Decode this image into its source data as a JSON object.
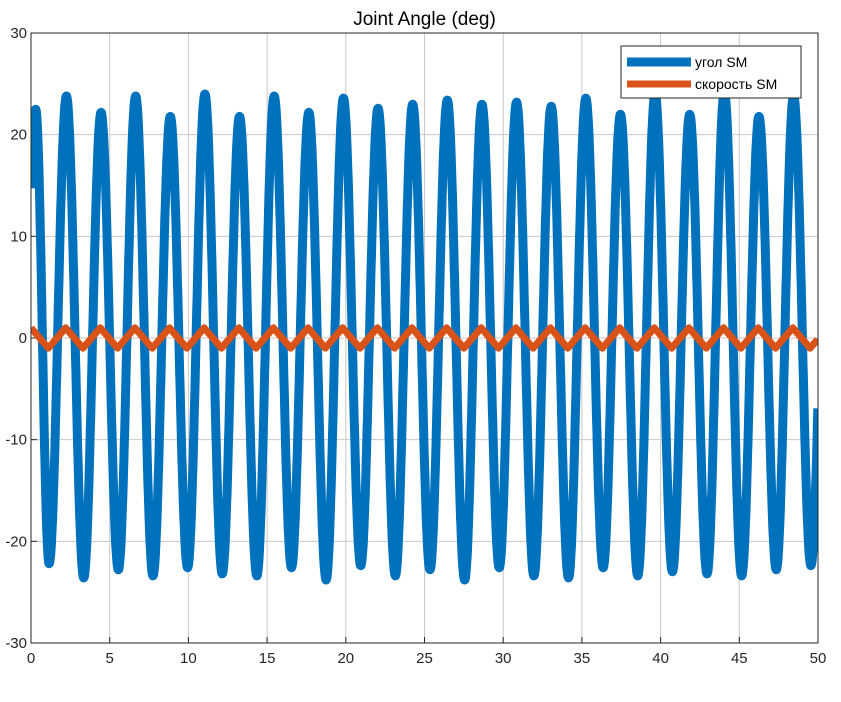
{
  "chart_data": {
    "type": "line",
    "title": "Joint Angle (deg)",
    "xlabel": "",
    "ylabel": "",
    "xlim": [
      0,
      50
    ],
    "ylim": [
      -30,
      30
    ],
    "x_ticks": [
      0,
      5,
      10,
      15,
      20,
      25,
      30,
      35,
      40,
      45,
      50
    ],
    "y_ticks": [
      30,
      20,
      10,
      0,
      -10,
      -20,
      -30
    ],
    "grid": true,
    "legend_position": "top-right",
    "series": [
      {
        "name": "угол SM",
        "color": "#0072BD",
        "peaks_x": [
          0.3,
          2.25,
          4.45,
          6.65,
          8.85,
          11.05,
          13.25,
          15.45,
          17.65,
          19.85,
          22.05,
          24.25,
          26.45,
          28.65,
          30.85,
          33.05,
          35.25,
          37.45,
          39.65,
          41.85,
          44.05,
          46.25,
          48.45
        ],
        "peaks_y": [
          22.5,
          23.8,
          22.2,
          23.8,
          21.8,
          24.0,
          21.8,
          23.8,
          22.2,
          23.6,
          22.6,
          23.0,
          23.4,
          23.0,
          23.2,
          22.8,
          23.6,
          22.0,
          24.0,
          22.0,
          24.2,
          21.8,
          23.8
        ],
        "troughs_x": [
          1.15,
          3.35,
          5.55,
          7.75,
          9.95,
          12.15,
          14.35,
          16.55,
          18.75,
          20.95,
          23.15,
          25.35,
          27.55,
          29.75,
          31.95,
          34.15,
          36.35,
          38.55,
          40.75,
          42.95,
          45.15,
          47.35,
          49.55
        ],
        "troughs_y": [
          -22.2,
          -23.6,
          -22.8,
          -23.4,
          -22.6,
          -23.2,
          -23.4,
          -22.6,
          -23.8,
          -22.4,
          -23.4,
          -22.8,
          -23.8,
          -22.6,
          -23.4,
          -23.6,
          -22.6,
          -23.4,
          -23.0,
          -23.2,
          -23.4,
          -22.8,
          -22.4
        ]
      },
      {
        "name": "скорость SM",
        "color": "#D95319",
        "amplitude": 1.0,
        "period": 2.2,
        "phase_x": 0
      }
    ]
  }
}
